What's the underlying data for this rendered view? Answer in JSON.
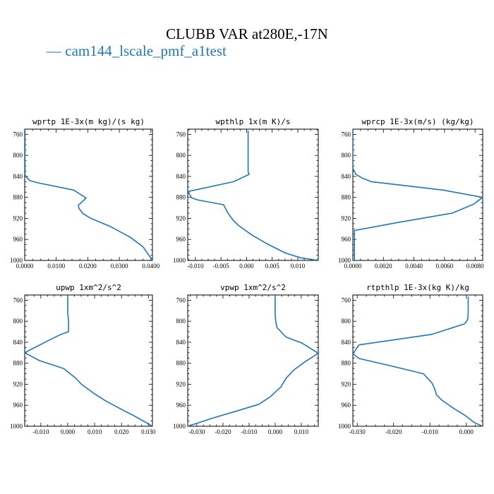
{
  "title": "CLUBB VAR at280E,-17N",
  "legend": {
    "label": "cam144_lscale_pmf_a1test",
    "line_color": "#1f77b4"
  },
  "colors": {
    "series": "#1f77b4",
    "axes": "#000000"
  },
  "chart_data": [
    {
      "type": "line",
      "title": "wprtp  1E-3x(m kg)/(s kg)",
      "xlim": [
        0,
        0.0405
      ],
      "ylim": [
        1000,
        750
      ],
      "xticks": [
        0,
        0.01,
        0.02,
        0.03,
        0.04
      ],
      "xtick_labels": [
        "0.0000",
        "0.0100",
        "0.0200",
        "0.0300",
        "0.0400"
      ],
      "yticks": [
        760,
        800,
        840,
        880,
        920,
        960,
        1000
      ],
      "series": [
        {
          "x": [
            0.0001,
            0.0001,
            0.0001,
            0.0001,
            0.0001,
            0.0001,
            0.0001,
            0.0003,
            0.0016,
            0.004,
            0.0155,
            0.0195,
            0.017,
            0.0172,
            0.0185,
            0.021,
            0.027,
            0.0335,
            0.0375,
            0.0405
          ],
          "y": [
            753,
            770,
            785,
            800,
            812,
            824,
            836,
            840,
            848,
            852,
            866,
            881,
            895,
            901,
            911,
            920,
            935,
            956,
            974,
            1000
          ]
        }
      ]
    },
    {
      "type": "line",
      "title": "wpthlp  1x(m K)/s",
      "xlim": [
        -0.0115,
        0.014
      ],
      "ylim": [
        1000,
        750
      ],
      "xticks": [
        -0.01,
        -0.005,
        0,
        0.005,
        0.01
      ],
      "xtick_labels": [
        "-0.010",
        "-0.005",
        "0.000",
        "0.005",
        "0.010"
      ],
      "yticks": [
        760,
        800,
        840,
        880,
        920,
        960,
        1000
      ],
      "series": [
        {
          "x": [
            0.0003,
            0.0003,
            0.0003,
            0.0003,
            0.0003,
            0.0003,
            0.0003,
            0.0005,
            -0.0025,
            -0.0115,
            -0.0107,
            -0.0095,
            -0.0045,
            -0.0037,
            -0.0026,
            -0.0015,
            0.0011,
            0.0041,
            0.0076,
            0.0106,
            0.014
          ],
          "y": [
            753,
            770,
            785,
            800,
            812,
            824,
            832,
            836,
            850,
            869,
            881,
            885,
            894,
            909,
            924,
            934,
            952,
            969,
            986,
            995,
            1000
          ]
        }
      ]
    },
    {
      "type": "line",
      "title": "wprcp  1E-3x(m/s) (kg/kg)",
      "xlim": [
        0,
        0.0085
      ],
      "ylim": [
        1000,
        750
      ],
      "xticks": [
        0,
        0.002,
        0.004,
        0.006,
        0.008
      ],
      "xtick_labels": [
        "0.0000",
        "0.0020",
        "0.0040",
        "0.0060",
        "0.0080"
      ],
      "yticks": [
        760,
        800,
        840,
        880,
        920,
        960,
        1000
      ],
      "series": [
        {
          "x": [
            0,
            0,
            0,
            0.0002,
            0.0006,
            0.0012,
            0.0059,
            0.0085,
            0.0079,
            0.0065,
            0.0029,
            0.0001,
            0.0001,
            0.0001,
            0.0001,
            0.0001
          ],
          "y": [
            753,
            790,
            825,
            836,
            843,
            850,
            866,
            880,
            893,
            910,
            928,
            943,
            955,
            970,
            985,
            1000
          ]
        }
      ]
    },
    {
      "type": "line",
      "title": "upwp  1xm^2/s^2",
      "xlim": [
        -0.016,
        0.0315
      ],
      "ylim": [
        1000,
        750
      ],
      "xticks": [
        -0.01,
        0,
        0.01,
        0.02,
        0.03
      ],
      "xtick_labels": [
        "-0.010",
        "0.000",
        "0.010",
        "0.020",
        "0.030"
      ],
      "yticks": [
        760,
        800,
        840,
        880,
        920,
        960,
        1000
      ],
      "series": [
        {
          "x": [
            0,
            0,
            0,
            0.0003,
            0.0003,
            -0.0025,
            -0.0065,
            -0.016,
            -0.0105,
            -0.0015,
            0.0029,
            0.0051,
            0.0099,
            0.0142,
            0.0208,
            0.0239,
            0.0288,
            0.0315
          ],
          "y": [
            753,
            770,
            785,
            800,
            820,
            825,
            835,
            860,
            875,
            890,
            908,
            920,
            938,
            952,
            970,
            978,
            992,
            1000
          ]
        }
      ]
    },
    {
      "type": "line",
      "title": "vpwp  1xm^2/s^2",
      "xlim": [
        -0.0335,
        0.0165
      ],
      "ylim": [
        1000,
        750
      ],
      "xticks": [
        -0.03,
        -0.02,
        -0.01,
        0,
        0.01
      ],
      "xtick_labels": [
        "-0.030",
        "-0.020",
        "-0.010",
        "0.000",
        "0.010"
      ],
      "yticks": [
        760,
        800,
        840,
        880,
        920,
        960,
        1000
      ],
      "series": [
        {
          "x": [
            0,
            0,
            0,
            0.0002,
            0.0007,
            0.0041,
            0.0104,
            0.0165,
            0.0112,
            0.0071,
            0.0041,
            0.0022,
            -0.0019,
            -0.0062,
            -0.0141,
            -0.023,
            -0.0335
          ],
          "y": [
            753,
            770,
            785,
            800,
            812,
            830,
            842,
            861,
            878,
            893,
            909,
            925,
            944,
            958,
            970,
            983,
            1000
          ]
        }
      ]
    },
    {
      "type": "line",
      "title": "rtpthlp  1E-3x(kg K)/kg",
      "xlim": [
        -0.0312,
        0.0045
      ],
      "ylim": [
        1000,
        750
      ],
      "xticks": [
        -0.03,
        -0.02,
        -0.01,
        0
      ],
      "xtick_labels": [
        "-0.030",
        "-0.020",
        "-0.010",
        "0.000"
      ],
      "yticks": [
        760,
        800,
        840,
        880,
        920,
        960,
        1000
      ],
      "series": [
        {
          "x": [
            0.0005,
            0.0005,
            0.0005,
            0.0004,
            0.0001,
            -0.0005,
            -0.0095,
            -0.0295,
            -0.0312,
            -0.0295,
            -0.0208,
            -0.0118,
            -0.0095,
            -0.0088,
            -0.0082,
            -0.0068,
            -0.0035,
            -0.0004,
            0.0022,
            0.0045
          ],
          "y": [
            753,
            770,
            785,
            795,
            800,
            805,
            825,
            845,
            862,
            871,
            885,
            900,
            917,
            927,
            940,
            950,
            966,
            979,
            993,
            1000
          ]
        }
      ]
    }
  ]
}
